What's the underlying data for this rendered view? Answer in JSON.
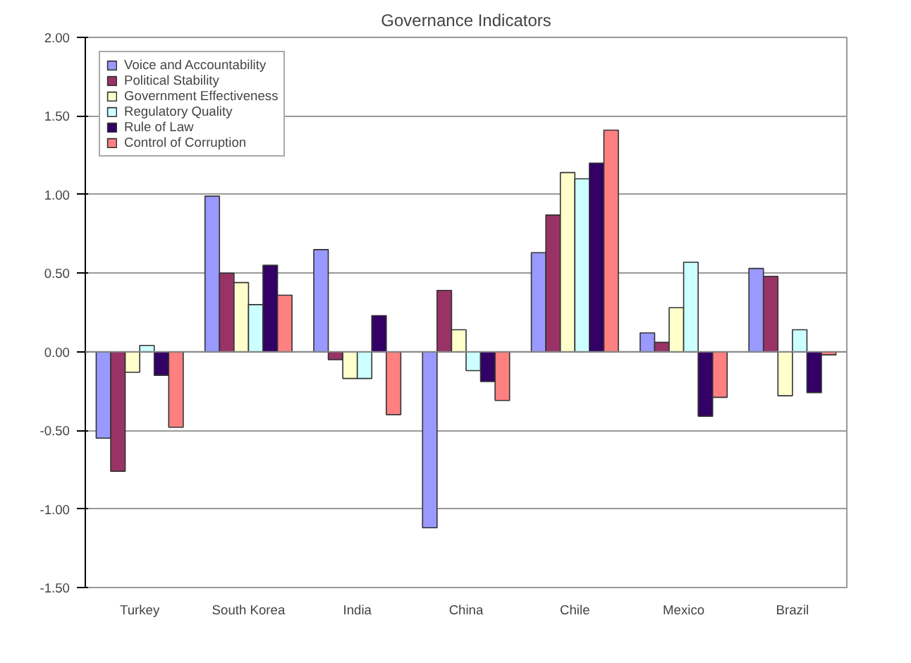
{
  "chart_data": {
    "type": "bar",
    "title": "Governance Indicators",
    "categories": [
      "Turkey",
      "South Korea",
      "India",
      "China",
      "Chile",
      "Mexico",
      "Brazil"
    ],
    "series": [
      {
        "name": "Voice and Accountability",
        "color": "#9999ff",
        "values": [
          -0.55,
          0.99,
          0.65,
          -1.12,
          0.63,
          0.12,
          0.53
        ]
      },
      {
        "name": "Political Stability",
        "color": "#993366",
        "values": [
          -0.76,
          0.5,
          -0.05,
          0.39,
          0.87,
          0.06,
          0.48
        ]
      },
      {
        "name": "Government Effectiveness",
        "color": "#ffffcc",
        "values": [
          -0.13,
          0.44,
          -0.17,
          0.14,
          1.14,
          0.28,
          -0.28
        ]
      },
      {
        "name": "Regulatory Quality",
        "color": "#ccffff",
        "values": [
          0.04,
          0.3,
          -0.17,
          -0.12,
          1.1,
          0.57,
          0.14
        ]
      },
      {
        "name": "Rule of Law",
        "color": "#330066",
        "values": [
          -0.15,
          0.55,
          0.23,
          -0.19,
          1.2,
          -0.41,
          -0.26
        ]
      },
      {
        "name": "Control of Corruption",
        "color": "#ff8080",
        "values": [
          -0.48,
          0.36,
          -0.4,
          -0.31,
          1.41,
          -0.29,
          -0.02
        ]
      }
    ],
    "ylim": [
      -1.5,
      2.0
    ],
    "yticks": [
      {
        "value": -1.5,
        "label": "-1.50"
      },
      {
        "value": -1.0,
        "label": "-1.00"
      },
      {
        "value": -0.5,
        "label": "-0.50"
      },
      {
        "value": 0,
        "label": "0.00"
      },
      {
        "value": 0.5,
        "label": "0.50"
      },
      {
        "value": 1.0,
        "label": "1.00"
      },
      {
        "value": 1.5,
        "label": "1.50"
      },
      {
        "value": 2.0,
        "label": "2.00"
      }
    ],
    "grid": "y",
    "legend": "top left"
  }
}
